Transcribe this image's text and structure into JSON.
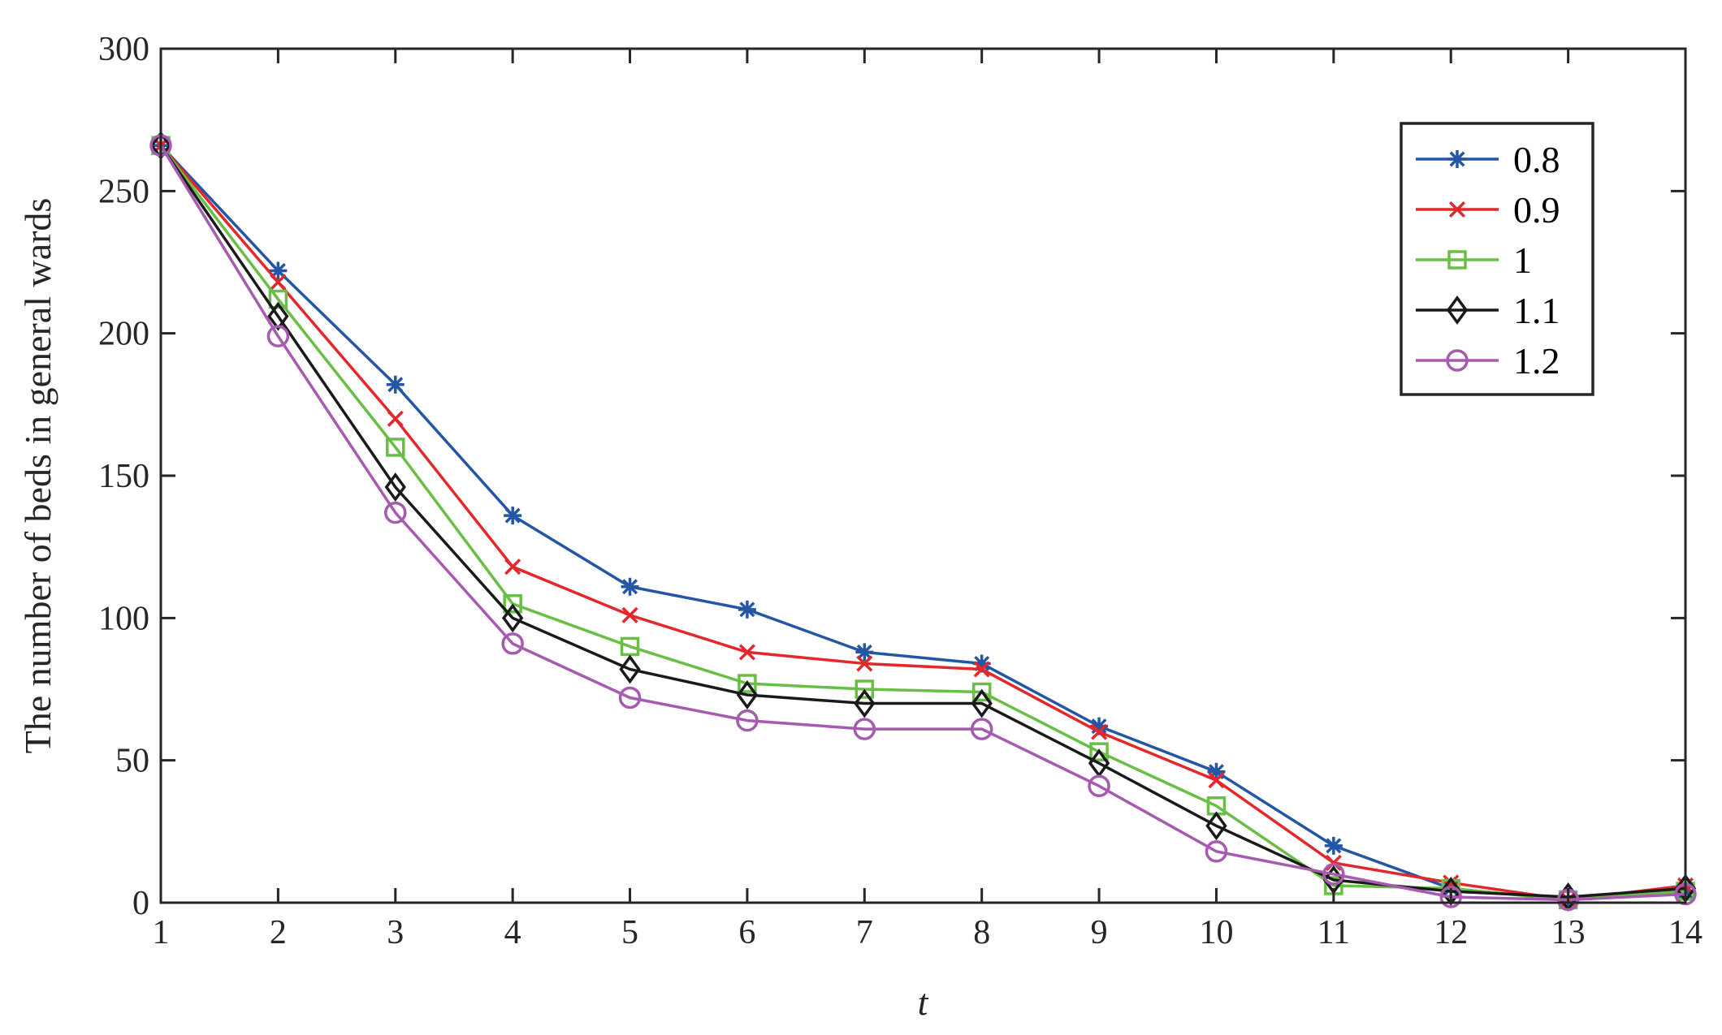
{
  "chart_data": {
    "type": "line",
    "xlabel": "t",
    "ylabel": "The number of beds in general wards",
    "x": [
      1,
      2,
      3,
      4,
      5,
      6,
      7,
      8,
      9,
      10,
      11,
      12,
      13,
      14
    ],
    "xlim": [
      1,
      14
    ],
    "ylim": [
      0,
      300
    ],
    "x_ticks": [
      "1",
      "2",
      "3",
      "4",
      "5",
      "6",
      "7",
      "8",
      "9",
      "10",
      "11",
      "12",
      "13",
      "14"
    ],
    "y_ticks": [
      "0",
      "50",
      "100",
      "150",
      "200",
      "250",
      "300"
    ],
    "grid": false,
    "legend_position": "top-right",
    "series": [
      {
        "name": "0.8",
        "color": "#2456A6",
        "marker": "asterisk",
        "values": [
          266,
          222,
          182,
          136,
          111,
          103,
          88,
          84,
          62,
          46,
          20,
          5,
          1,
          4
        ]
      },
      {
        "name": "0.9",
        "color": "#E3272B",
        "marker": "x",
        "values": [
          266,
          218,
          170,
          118,
          101,
          88,
          84,
          82,
          60,
          43,
          14,
          7,
          1,
          6
        ]
      },
      {
        "name": "1",
        "color": "#69BF45",
        "marker": "square",
        "values": [
          266,
          212,
          160,
          105,
          90,
          77,
          75,
          74,
          53,
          34,
          6,
          5,
          1,
          4
        ]
      },
      {
        "name": "1.1",
        "color": "#1A1A1A",
        "marker": "diamond",
        "values": [
          266,
          206,
          146,
          100,
          82,
          73,
          70,
          70,
          49,
          27,
          8,
          4,
          2,
          5
        ]
      },
      {
        "name": "1.2",
        "color": "#A65AB0",
        "marker": "circle",
        "values": [
          266,
          199,
          137,
          91,
          72,
          64,
          61,
          61,
          41,
          18,
          10,
          2,
          1,
          3
        ]
      }
    ]
  }
}
